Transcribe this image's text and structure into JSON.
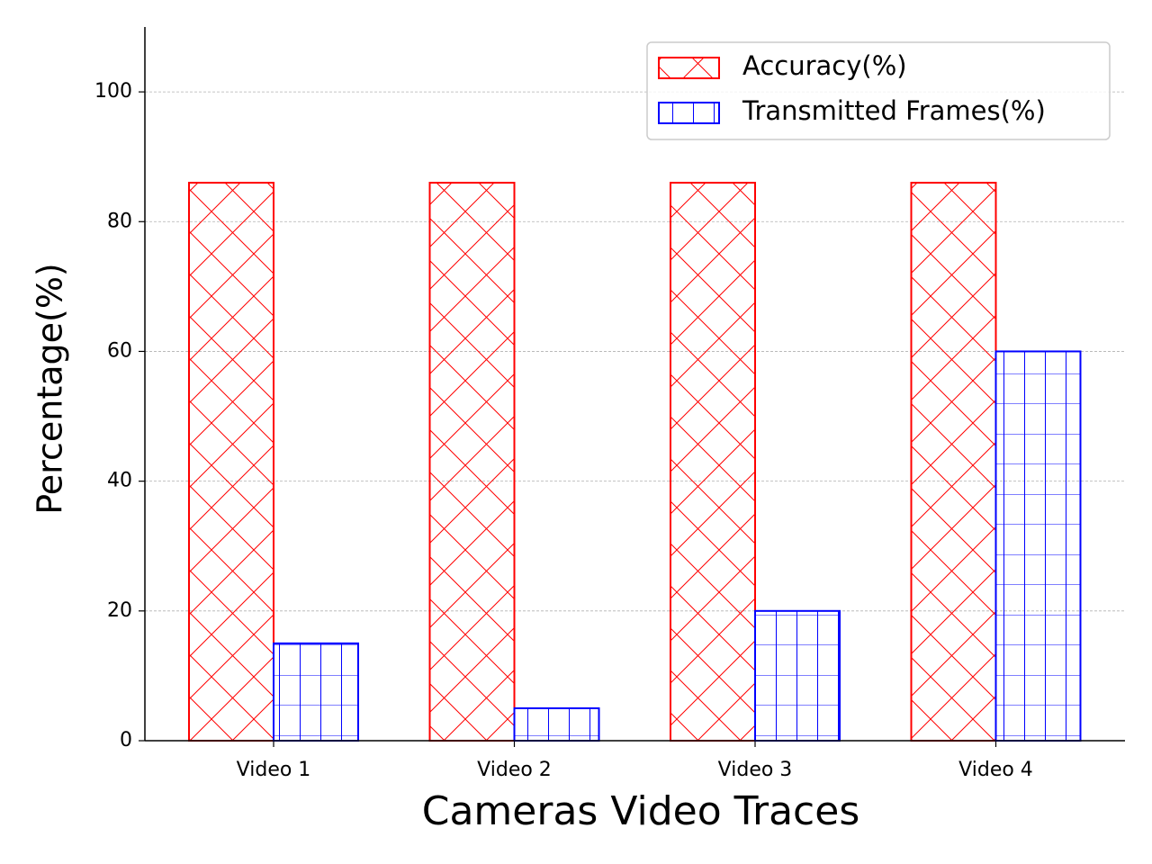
{
  "chart_data": {
    "type": "bar",
    "x_label": "Cameras Video Traces",
    "y_label": "Percentage(%)",
    "categories": [
      "Video 1",
      "Video 2",
      "Video 3",
      "Video 4"
    ],
    "series": [
      {
        "name": "Accuracy(%)",
        "color": "#ff0000",
        "hatch": "x",
        "values": [
          86,
          86,
          86,
          86
        ]
      },
      {
        "name": "Transmitted Frames(%)",
        "color": "#0000ff",
        "hatch": "+",
        "values": [
          15,
          5,
          20,
          60
        ]
      }
    ],
    "ylim": [
      0,
      110
    ],
    "yticks": [
      0,
      20,
      40,
      60,
      80,
      100
    ],
    "grid": true,
    "legend": "upper right"
  }
}
